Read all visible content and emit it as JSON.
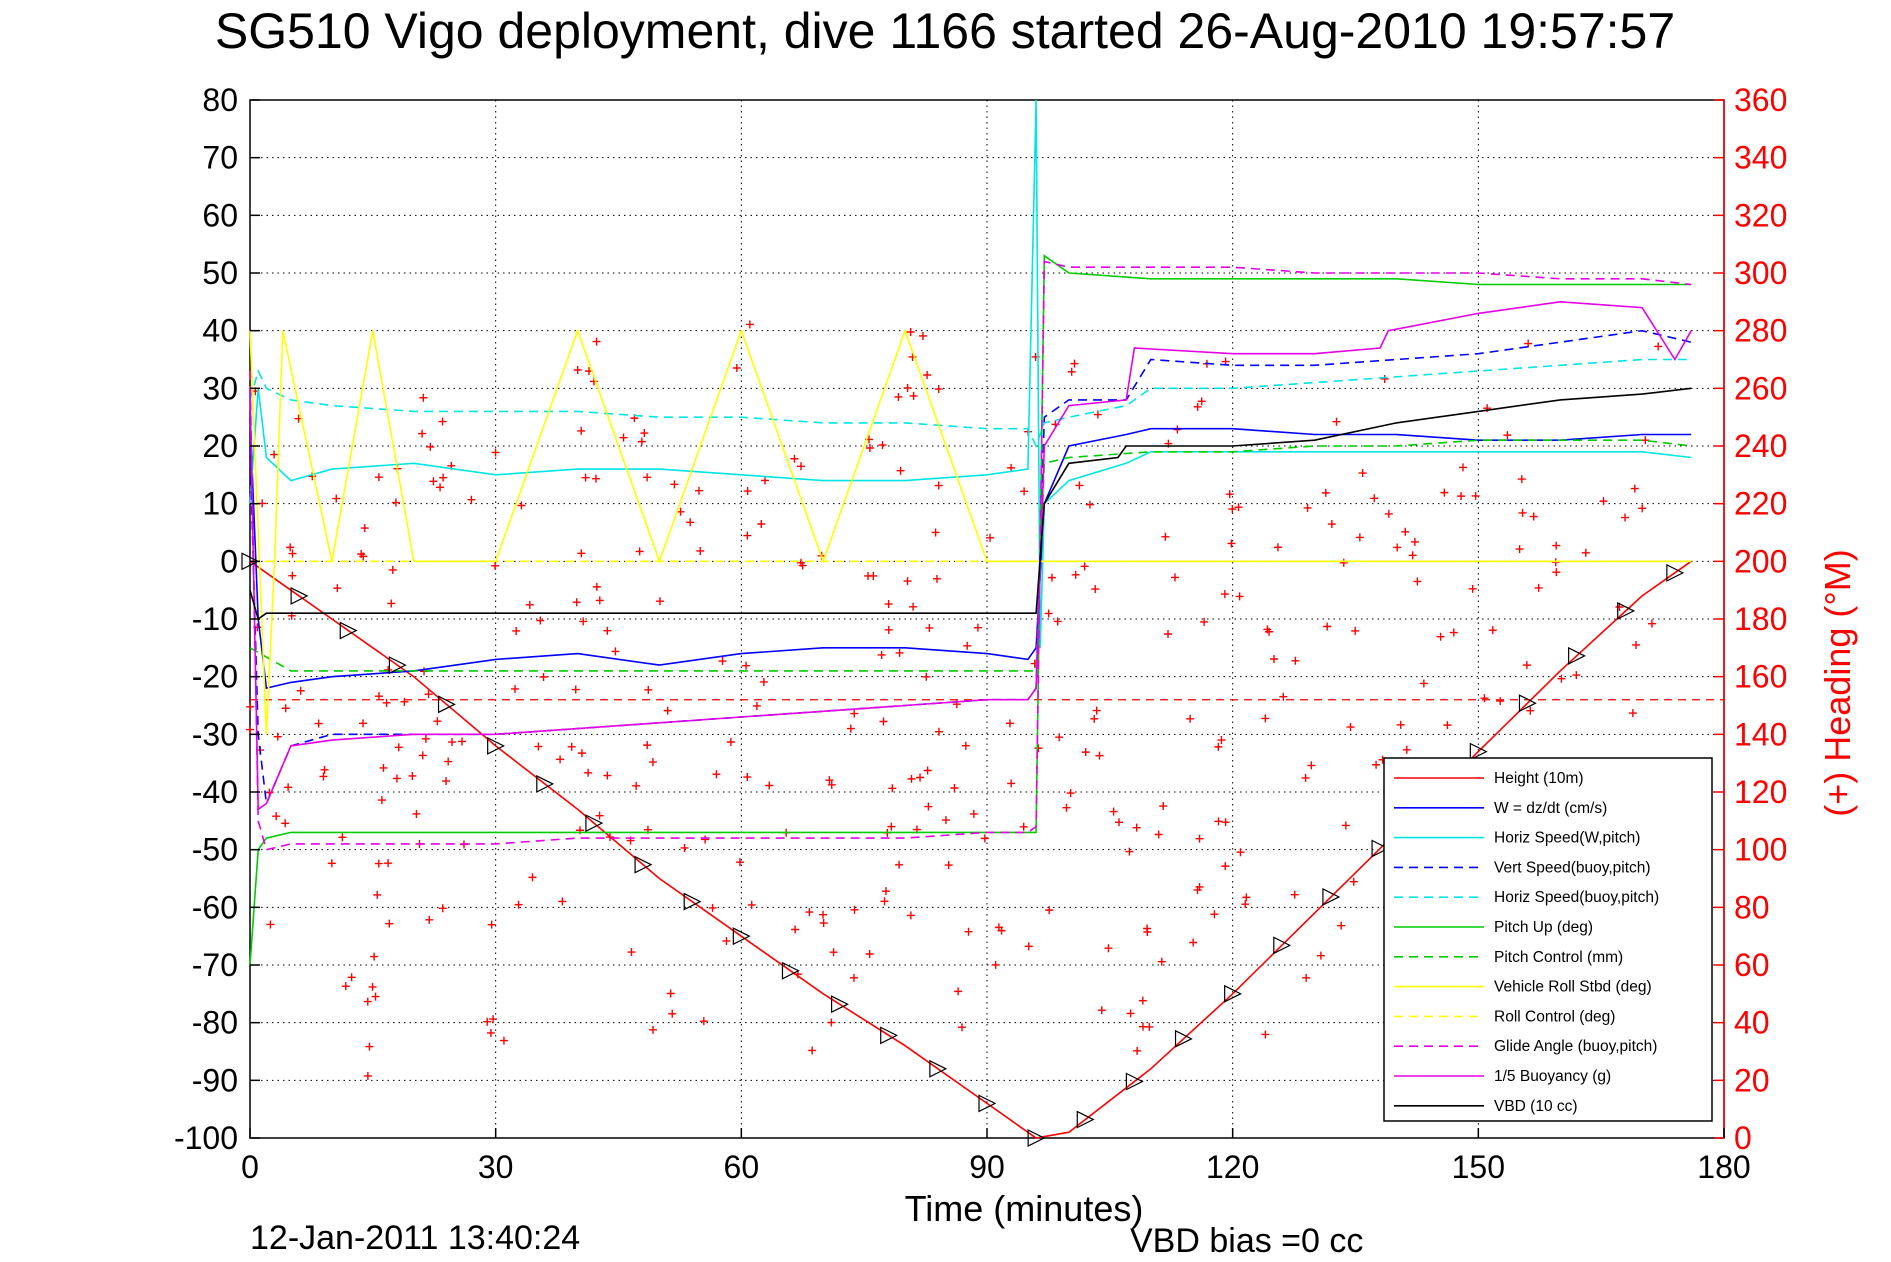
{
  "chart_data": {
    "type": "line",
    "title": "SG510 Vigo deployment, dive 1166 started 26-Aug-2010 19:57:57",
    "xlabel": "Time (minutes)",
    "ylabel_right": "(+) Heading (°M)",
    "footer_date": "12-Jan-2011 13:40:24",
    "footer_note": "VBD bias =0 cc",
    "xlim": [
      0,
      180
    ],
    "ylim_left": [
      -100,
      80
    ],
    "ylim_right": [
      0,
      360
    ],
    "x_ticks": [
      "0",
      "30",
      "60",
      "90",
      "120",
      "150",
      "180"
    ],
    "y_ticks_left": [
      "80",
      "70",
      "60",
      "50",
      "40",
      "30",
      "20",
      "10",
      "0",
      "-10",
      "-20",
      "-30",
      "-40",
      "-50",
      "-60",
      "-70",
      "-80",
      "-90",
      "-100"
    ],
    "y_ticks_right": [
      "360",
      "340",
      "320",
      "300",
      "280",
      "260",
      "240",
      "220",
      "200",
      "180",
      "160",
      "140",
      "120",
      "100",
      "80",
      "60",
      "40",
      "20",
      "0"
    ],
    "grid": true,
    "legend_position": "bottom-right",
    "series": [
      {
        "name": "Height (10m)",
        "color": "#ff0000",
        "style": "solid",
        "x": [
          0,
          5,
          10,
          15,
          20,
          30,
          40,
          50,
          60,
          70,
          80,
          90,
          96,
          100,
          110,
          120,
          130,
          140,
          150,
          160,
          170,
          176
        ],
        "y": [
          0,
          -5,
          -10,
          -15,
          -20,
          -32,
          -43,
          -55,
          -65,
          -75,
          -84,
          -94,
          -100,
          -99,
          -88,
          -75,
          -61,
          -47,
          -33,
          -19,
          -6,
          0
        ]
      },
      {
        "name": "W = dz/dt (cm/s)",
        "color": "#0000ff",
        "style": "solid",
        "x": [
          0,
          1,
          2,
          5,
          10,
          20,
          30,
          40,
          50,
          60,
          70,
          80,
          90,
          95,
          96,
          97,
          100,
          107,
          110,
          120,
          130,
          140,
          150,
          160,
          170,
          176
        ],
        "y": [
          25,
          -10,
          -22,
          -21,
          -20,
          -19,
          -17,
          -16,
          -18,
          -16,
          -15,
          -15,
          -16,
          -17,
          -15,
          10,
          20,
          22,
          23,
          23,
          22,
          22,
          21,
          21,
          22,
          22
        ]
      },
      {
        "name": "Horiz Speed(W,pitch)",
        "color": "#00e5e5",
        "style": "solid",
        "x": [
          0,
          1,
          2,
          5,
          10,
          20,
          30,
          40,
          50,
          60,
          70,
          80,
          90,
          95,
          96,
          96.5,
          97,
          100,
          107,
          110,
          120,
          130,
          140,
          150,
          160,
          170,
          176
        ],
        "y": [
          10,
          30,
          18,
          14,
          16,
          17,
          15,
          16,
          16,
          15,
          14,
          14,
          15,
          16,
          80,
          -15,
          10,
          14,
          17,
          19,
          19,
          19,
          19,
          19,
          19,
          19,
          18
        ]
      },
      {
        "name": "Vert Speed(buoy,pitch)",
        "color": "#0000ff",
        "style": "dashed",
        "x": [
          0,
          1,
          2,
          5,
          10,
          20,
          30,
          40,
          50,
          60,
          70,
          80,
          90,
          95,
          96,
          97,
          100,
          107,
          110,
          120,
          130,
          140,
          150,
          160,
          170,
          176
        ],
        "y": [
          20,
          -30,
          -42,
          -32,
          -30,
          -30,
          -30,
          -29,
          -28,
          -27,
          -26,
          -25,
          -24,
          -24,
          -22,
          25,
          28,
          28,
          35,
          34,
          34,
          35,
          36,
          38,
          40,
          38
        ]
      },
      {
        "name": "Horiz Speed(buoy,pitch)",
        "color": "#00e5e5",
        "style": "dashed",
        "x": [
          0,
          1,
          2,
          5,
          10,
          20,
          30,
          40,
          50,
          60,
          70,
          80,
          90,
          95,
          96,
          97,
          100,
          107,
          110,
          120,
          130,
          140,
          150,
          160,
          170,
          176
        ],
        "y": [
          28,
          33,
          30,
          28,
          27,
          26,
          26,
          26,
          25,
          25,
          24,
          24,
          23,
          23,
          20,
          24,
          25,
          27,
          30,
          30,
          31,
          32,
          33,
          34,
          35,
          35
        ]
      },
      {
        "name": "Pitch Up (deg)",
        "color": "#00cc00",
        "style": "solid",
        "x": [
          0,
          1,
          2,
          5,
          10,
          20,
          30,
          40,
          50,
          60,
          70,
          80,
          90,
          95,
          96,
          97,
          100,
          110,
          120,
          130,
          140,
          150,
          160,
          170,
          176
        ],
        "y": [
          -70,
          -50,
          -48,
          -47,
          -47,
          -47,
          -47,
          -47,
          -47,
          -47,
          -47,
          -47,
          -47,
          -47,
          -47,
          53,
          50,
          49,
          49,
          49,
          49,
          48,
          48,
          48,
          48
        ]
      },
      {
        "name": "Pitch Control (mm)",
        "color": "#00cc00",
        "style": "dashed",
        "x": [
          0,
          5,
          20,
          40,
          60,
          80,
          95,
          96,
          97,
          100,
          110,
          120,
          130,
          140,
          150,
          160,
          170,
          176
        ],
        "y": [
          -15,
          -19,
          -19,
          -19,
          -19,
          -19,
          -19,
          -19,
          17,
          18,
          19,
          19,
          20,
          20,
          21,
          21,
          21,
          20
        ]
      },
      {
        "name": "Vehicle Roll Stbd (deg)",
        "color": "#ffff00",
        "style": "solid",
        "x": [
          0,
          2,
          3,
          4,
          10,
          15,
          20,
          30,
          40,
          50,
          60,
          70,
          80,
          90,
          95,
          96,
          100,
          110,
          120,
          130,
          140,
          150,
          160,
          170,
          176
        ],
        "y": [
          40,
          -30,
          0,
          40,
          0,
          40,
          0,
          0,
          40,
          0,
          40,
          0,
          40,
          0,
          0,
          0,
          0,
          0,
          0,
          0,
          0,
          0,
          0,
          0,
          0
        ]
      },
      {
        "name": "Roll Control (deg)",
        "color": "#ffff00",
        "style": "dashed",
        "x": [
          0,
          5,
          20,
          40,
          60,
          80,
          95,
          100,
          120,
          140,
          160,
          176
        ],
        "y": [
          0,
          0,
          0,
          0,
          0,
          0,
          0,
          0,
          0,
          0,
          0,
          0
        ]
      },
      {
        "name": "Glide Angle (buoy,pitch)",
        "color": "#e600e6",
        "style": "dashed",
        "x": [
          0,
          1,
          2,
          5,
          10,
          20,
          30,
          40,
          50,
          60,
          70,
          80,
          90,
          95,
          96,
          97,
          100,
          110,
          120,
          130,
          140,
          150,
          160,
          170,
          176
        ],
        "y": [
          33,
          -45,
          -50,
          -49,
          -49,
          -49,
          -49,
          -48,
          -48,
          -48,
          -48,
          -48,
          -47,
          -47,
          -46,
          52,
          51,
          51,
          51,
          50,
          50,
          50,
          49,
          49,
          48
        ]
      },
      {
        "name": "1/5 Buoyancy (g)",
        "color": "#e600e6",
        "style": "solid",
        "x": [
          0,
          1,
          2,
          5,
          10,
          20,
          30,
          40,
          50,
          60,
          70,
          80,
          90,
          95,
          96,
          97,
          100,
          107,
          108,
          120,
          130,
          138,
          139,
          150,
          160,
          170,
          174,
          176
        ],
        "y": [
          30,
          -43,
          -42,
          -32,
          -31,
          -30,
          -30,
          -29,
          -28,
          -27,
          -26,
          -25,
          -24,
          -24,
          -22,
          20,
          27,
          28,
          37,
          36,
          36,
          37,
          40,
          43,
          45,
          44,
          35,
          40
        ]
      },
      {
        "name": "VBD (10 cc)",
        "color": "#000000",
        "style": "solid",
        "x": [
          0,
          1,
          2,
          5,
          10,
          20,
          40,
          60,
          80,
          95,
          96,
          97,
          100,
          106,
          107,
          120,
          130,
          140,
          150,
          160,
          170,
          176
        ],
        "y": [
          -5,
          -10,
          -9,
          -9,
          -9,
          -9,
          -9,
          -9,
          -9,
          -9,
          -9,
          10,
          17,
          18,
          20,
          20,
          21,
          24,
          26,
          28,
          29,
          30
        ]
      }
    ],
    "heading_series": {
      "name": "Heading (+)",
      "color": "#ff0000",
      "marker": "+",
      "mean": 152
    }
  },
  "legend": {
    "entries": [
      "Height (10m)",
      "W = dz/dt (cm/s)",
      "Horiz Speed(W,pitch)",
      "Vert Speed(buoy,pitch)",
      "Horiz Speed(buoy,pitch)",
      "Pitch Up (deg)",
      "Pitch Control (mm)",
      "Vehicle Roll Stbd (deg)",
      "Roll Control (deg)",
      "Glide Angle (buoy,pitch)",
      "1/5 Buoyancy (g)",
      "VBD (10 cc)"
    ]
  }
}
